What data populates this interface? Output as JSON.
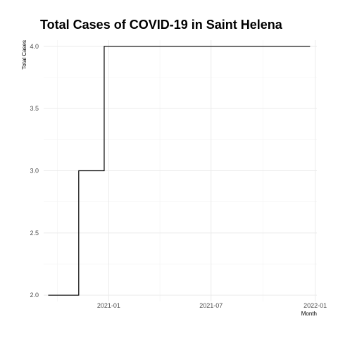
{
  "chart_data": {
    "type": "line",
    "title": "Total Cases of COVID-19 in Saint Helena",
    "xlabel": "Month",
    "ylabel": "Total Cases",
    "line_shape": "step",
    "x_tick_labels": [
      "2021-01",
      "2021-07",
      "2022-01"
    ],
    "x_ticks": [
      "2021-01-01",
      "2021-07-01",
      "2022-01-01"
    ],
    "y_tick_labels": [
      "2.0",
      "2.5",
      "3.0",
      "3.5",
      "4.0"
    ],
    "y_ticks": [
      2.0,
      2.5,
      3.0,
      3.5,
      4.0
    ],
    "xlim": [
      "2020-09-08",
      "2022-01-04"
    ],
    "ylim": [
      1.95,
      4.05
    ],
    "grid": true,
    "legend": "none",
    "series": [
      {
        "x": [
          "2020-09-16",
          "2020-11-09",
          "2020-12-24",
          "2021-12-23"
        ],
        "y": [
          2,
          3,
          4,
          4
        ]
      }
    ],
    "colors": {
      "line": "#000000",
      "grid_major": "#ebebeb",
      "grid_minor": "#f2f2f2"
    }
  }
}
